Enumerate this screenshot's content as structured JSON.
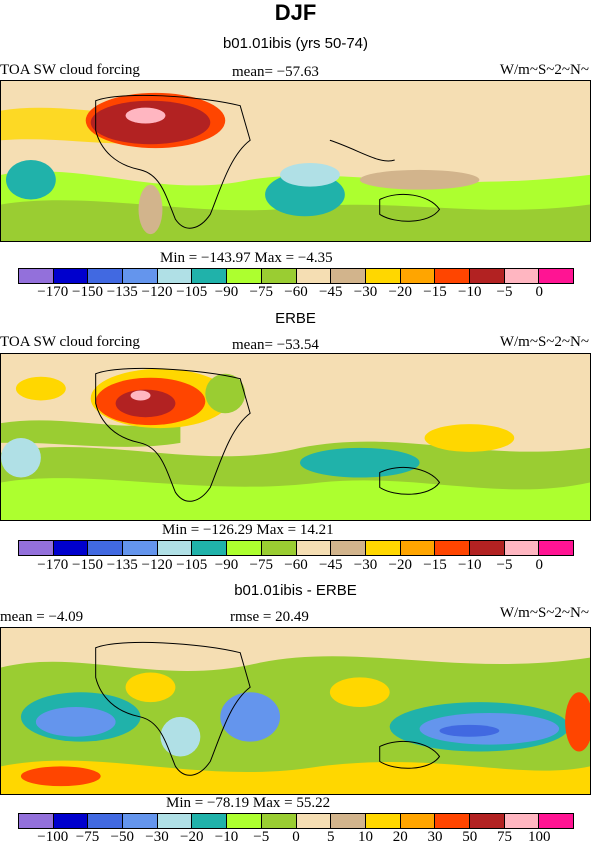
{
  "header": {
    "title": "DJF",
    "subtitle": "b01.01ibis (yrs 50-74)"
  },
  "panels": [
    {
      "subtitle": "",
      "left_label": "TOA SW cloud forcing",
      "center_label": "mean=  −57.63",
      "right_label": "W/m~S~2~N~",
      "minmax": "Min = −143.97 Max =   −4.35",
      "colorbar_labels": [
        "−170",
        "−150",
        "−135",
        "−120",
        "−105",
        "−90",
        "−75",
        "−60",
        "−45",
        "−30",
        "−20",
        "−15",
        "−10",
        "−5",
        "0"
      ]
    },
    {
      "subtitle": "ERBE",
      "left_label": "TOA SW cloud forcing",
      "center_label": "mean=  −53.54",
      "right_label": "W/m~S~2~N~",
      "minmax": "Min = −126.29 Max =   14.21",
      "colorbar_labels": [
        "−170",
        "−150",
        "−135",
        "−120",
        "−105",
        "−90",
        "−75",
        "−60",
        "−45",
        "−30",
        "−20",
        "−15",
        "−10",
        "−5",
        "0"
      ]
    },
    {
      "subtitle": "b01.01ibis - ERBE",
      "left_label": "mean =   −4.09",
      "center_label": "rmse =  20.49",
      "right_label": "W/m~S~2~N~",
      "minmax": "Min = −78.19 Max =   55.22",
      "colorbar_labels": [
        "−100",
        "−75",
        "−50",
        "−30",
        "−20",
        "−10",
        "−5",
        "0",
        "5",
        "10",
        "20",
        "30",
        "50",
        "75",
        "100"
      ]
    }
  ],
  "colors": {
    "palette": [
      "#9370db",
      "#0000cd",
      "#4169e1",
      "#6495ed",
      "#b0e0e6",
      "#20b2aa",
      "#adff2f",
      "#9acd32",
      "#f5deb3",
      "#d2b48c",
      "#ffd700",
      "#ffa500",
      "#ff4500",
      "#b22222",
      "#ffb6c1",
      "#ff1493"
    ]
  },
  "chart_data": [
    {
      "type": "heatmap",
      "title": "DJF",
      "subtitle": "b01.01ibis (yrs 50-74)",
      "variable": "TOA SW cloud forcing",
      "units": "W/m~S~2~N~",
      "mean": -57.63,
      "min": -143.97,
      "max": -4.35,
      "levels": [
        -170,
        -150,
        -135,
        -120,
        -105,
        -90,
        -75,
        -60,
        -45,
        -30,
        -20,
        -15,
        -10,
        -5,
        0
      ]
    },
    {
      "type": "heatmap",
      "title": "ERBE",
      "variable": "TOA SW cloud forcing",
      "units": "W/m~S~2~N~",
      "mean": -53.54,
      "min": -126.29,
      "max": 14.21,
      "levels": [
        -170,
        -150,
        -135,
        -120,
        -105,
        -90,
        -75,
        -60,
        -45,
        -30,
        -20,
        -15,
        -10,
        -5,
        0
      ]
    },
    {
      "type": "heatmap",
      "title": "b01.01ibis - ERBE",
      "units": "W/m~S~2~N~",
      "mean": -4.09,
      "rmse": 20.49,
      "min": -78.19,
      "max": 55.22,
      "levels": [
        -100,
        -75,
        -50,
        -30,
        -20,
        -10,
        -5,
        0,
        5,
        10,
        20,
        30,
        50,
        75,
        100
      ]
    }
  ]
}
